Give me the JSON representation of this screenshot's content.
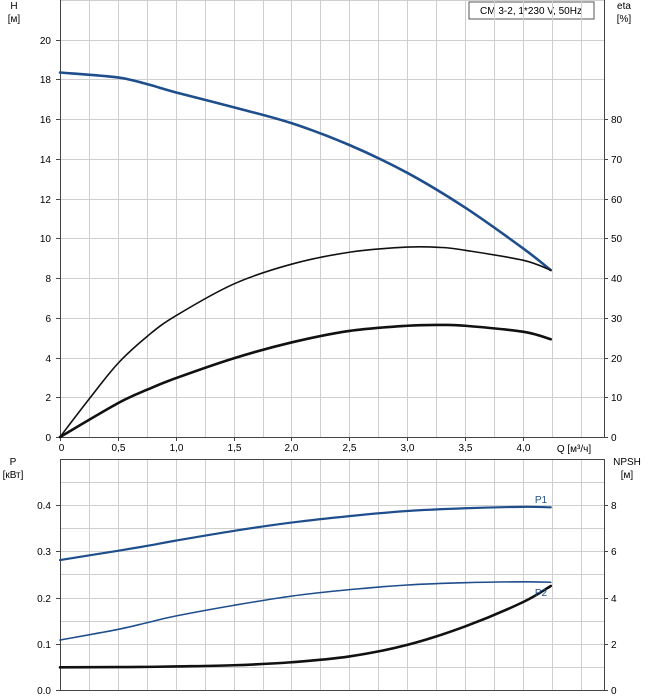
{
  "chart_data": [
    {
      "type": "line",
      "title": "CM 3-2, 1*230 V, 50Hz",
      "xlabel": "Q [м³/ч]",
      "x_ticks": [
        "0",
        "0,5",
        "1,0",
        "1,5",
        "2,0",
        "2,5",
        "3,0",
        "3,5",
        "4,0"
      ],
      "xlim": [
        0,
        4.7
      ],
      "y_left": {
        "label_top": "H",
        "label_unit": "[м]",
        "lim": [
          0,
          22
        ],
        "ticks": [
          "0",
          "2",
          "4",
          "6",
          "8",
          "10",
          "12",
          "14",
          "16",
          "18",
          "20"
        ]
      },
      "y_right": {
        "label_top": "eta",
        "label_unit": "[%]",
        "lim": [
          0,
          110
        ],
        "ticks": [
          "0",
          "10",
          "20",
          "30",
          "40",
          "50",
          "60",
          "70",
          "80"
        ]
      },
      "grid": true,
      "series": [
        {
          "axis": "left",
          "color": "#1f4e8c",
          "width": 2.6,
          "x": [
            0,
            0.5,
            0.76,
            1.0,
            1.5,
            2.0,
            2.5,
            3.0,
            3.5,
            4.0,
            4.24
          ],
          "y": [
            18.35,
            18.1,
            17.75,
            17.35,
            16.6,
            15.8,
            14.7,
            13.3,
            11.55,
            9.5,
            8.4
          ]
        },
        {
          "axis": "right",
          "color": "#111111",
          "width": 1.6,
          "x": [
            0,
            0.25,
            0.5,
            0.76,
            1.0,
            1.5,
            2.0,
            2.5,
            3.0,
            3.3,
            3.5,
            4.0,
            4.24
          ],
          "y": [
            0,
            9.5,
            18.5,
            25.5,
            30.5,
            38.5,
            43.5,
            46.5,
            47.8,
            47.7,
            47.0,
            44.5,
            42.0
          ]
        },
        {
          "axis": "right",
          "color": "#111111",
          "width": 2.6,
          "x": [
            0,
            0.5,
            0.76,
            1.0,
            1.5,
            2.0,
            2.5,
            3.0,
            3.3,
            3.5,
            4.0,
            4.24
          ],
          "y": [
            0,
            8.5,
            12.0,
            14.8,
            19.8,
            23.8,
            26.7,
            28.0,
            28.2,
            28.0,
            26.5,
            24.6
          ]
        }
      ]
    },
    {
      "type": "line",
      "x_ticks": [],
      "xlim": [
        0,
        4.7
      ],
      "y_left": {
        "label_top": "P",
        "label_unit": "[кВт]",
        "lim": [
          0,
          0.4
        ],
        "ticks": [
          "0.0",
          "0.1",
          "0.2",
          "0.3",
          "0.4"
        ]
      },
      "y_right": {
        "label_top": "NPSH",
        "label_unit": "[м]",
        "lim": [
          0,
          8
        ],
        "ticks": [
          "0",
          "2",
          "4",
          "6",
          "8"
        ]
      },
      "grid": true,
      "series": [
        {
          "name": "P1",
          "axis": "left",
          "color": "#1f4e8c",
          "width": 2.2,
          "x": [
            0,
            0.5,
            0.76,
            1.0,
            1.5,
            2.0,
            2.5,
            3.0,
            3.5,
            4.0,
            4.24
          ],
          "y": [
            0.281,
            0.301,
            0.312,
            0.323,
            0.344,
            0.362,
            0.376,
            0.387,
            0.393,
            0.396,
            0.395
          ]
        },
        {
          "name": "P2",
          "axis": "left",
          "color": "#1f4e8c",
          "width": 1.6,
          "x": [
            0,
            0.5,
            0.76,
            1.0,
            1.5,
            2.0,
            2.5,
            3.0,
            3.5,
            4.0,
            4.24
          ],
          "y": [
            0.108,
            0.131,
            0.146,
            0.16,
            0.183,
            0.203,
            0.217,
            0.227,
            0.232,
            0.234,
            0.233
          ]
        },
        {
          "axis": "right",
          "color": "#111111",
          "width": 2.6,
          "x": [
            0,
            0.5,
            0.76,
            1.0,
            1.5,
            2.0,
            2.5,
            3.0,
            3.5,
            4.0,
            4.24
          ],
          "y": [
            0.98,
            0.99,
            1.0,
            1.02,
            1.07,
            1.2,
            1.45,
            1.95,
            2.75,
            3.8,
            4.5
          ]
        }
      ]
    }
  ]
}
